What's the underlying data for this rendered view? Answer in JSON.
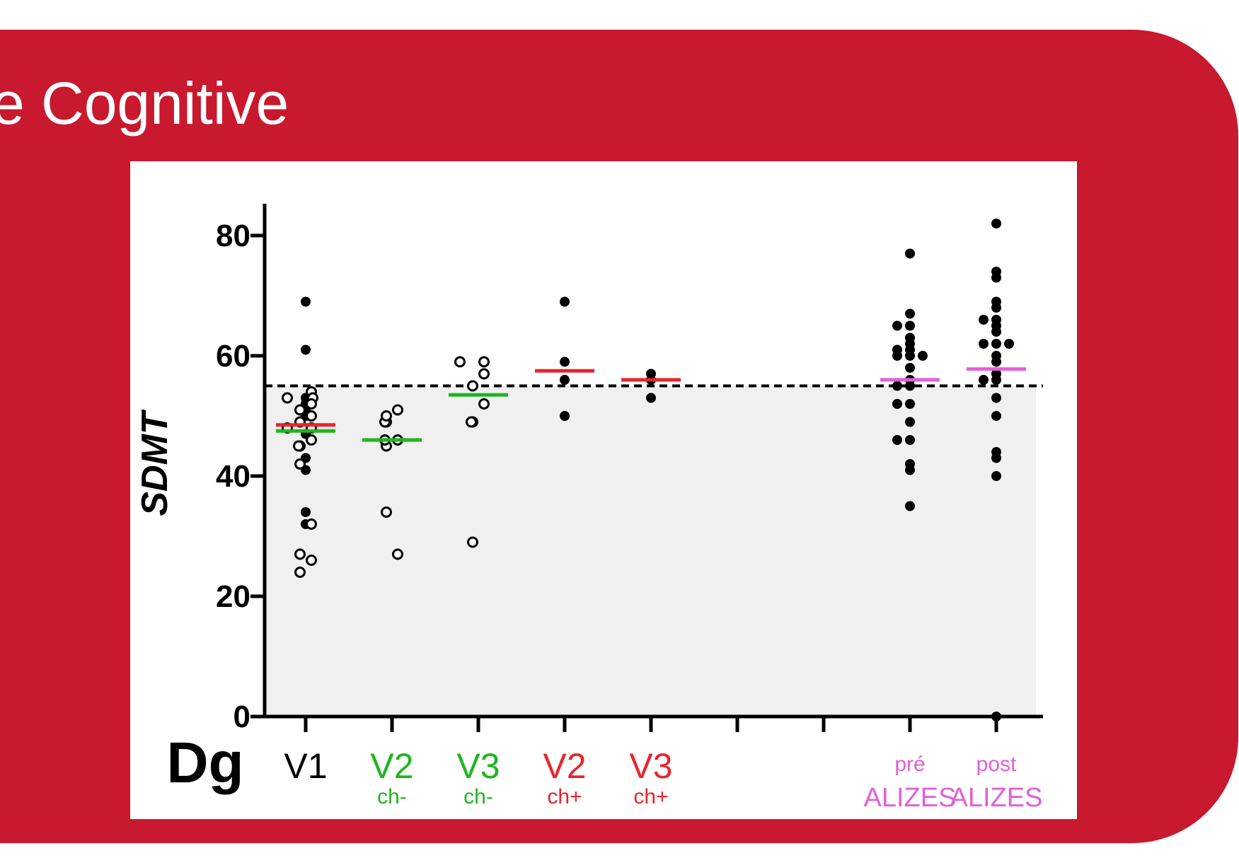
{
  "slide": {
    "title": "e Cognitive",
    "background_color": "#ffffff",
    "panel_color": "#c8192e"
  },
  "chart_data": {
    "type": "scatter",
    "ylabel": "SDMT",
    "ylim": [
      0,
      85
    ],
    "yticks": [
      0,
      20,
      40,
      60,
      80
    ],
    "reference_line": 55,
    "below_reference_shading": "#f0f0f0",
    "row_label": "Dg",
    "categories": [
      {
        "label": "V1",
        "sublabel": "",
        "color": "#000000"
      },
      {
        "label": "V2",
        "sublabel": "ch-",
        "color": "#1fb51f"
      },
      {
        "label": "V3",
        "sublabel": "ch-",
        "color": "#1fb51f"
      },
      {
        "label": "V2",
        "sublabel": "ch+",
        "color": "#e8242c"
      },
      {
        "label": "V3",
        "sublabel": "ch+",
        "color": "#e8242c"
      },
      {
        "label": "",
        "sublabel": "",
        "color": "#000000"
      },
      {
        "label": "",
        "sublabel": "",
        "color": "#000000"
      },
      {
        "label": "pré",
        "sublabel": "ALIZES",
        "color": "#e060d8"
      },
      {
        "label": "post",
        "sublabel": "ALIZES",
        "color": "#e060d8"
      }
    ],
    "series": [
      {
        "category": 0,
        "filled": [
          69,
          61,
          53,
          52,
          51,
          50,
          47,
          43,
          41,
          34,
          32
        ],
        "open": [
          53,
          53,
          54,
          53,
          52,
          51,
          50,
          49,
          48,
          48,
          46,
          45,
          45,
          42,
          32,
          27,
          26,
          24
        ],
        "means": [
          {
            "value": 48.5,
            "color": "#e8242c"
          },
          {
            "value": 47.5,
            "color": "#1fb51f"
          }
        ]
      },
      {
        "category": 1,
        "filled": [],
        "open": [
          51,
          49,
          49,
          50,
          46,
          45,
          46,
          34,
          27
        ],
        "means": [
          {
            "value": 46,
            "color": "#1fb51f"
          }
        ]
      },
      {
        "category": 2,
        "filled": [],
        "open": [
          59,
          59,
          57,
          55,
          52,
          49,
          49,
          29
        ],
        "means": [
          {
            "value": 53.5,
            "color": "#1fb51f"
          }
        ]
      },
      {
        "category": 3,
        "filled": [
          69,
          59,
          56,
          50
        ],
        "open": [],
        "means": [
          {
            "value": 57.5,
            "color": "#e8242c"
          }
        ]
      },
      {
        "category": 4,
        "filled": [
          57,
          56,
          53
        ],
        "open": [],
        "means": [
          {
            "value": 56,
            "color": "#e8242c"
          }
        ]
      },
      {
        "category": 7,
        "filled": [
          77,
          67,
          65,
          65,
          63,
          62,
          61,
          61,
          60,
          60,
          60,
          58,
          56,
          55,
          55,
          52,
          52,
          49,
          46,
          46,
          42,
          41,
          35
        ],
        "open": [],
        "means": [
          {
            "value": 56,
            "color": "#e060d8"
          }
        ]
      },
      {
        "category": 8,
        "filled": [
          82,
          74,
          73,
          69,
          68,
          66,
          66,
          65,
          64,
          62,
          62,
          62,
          60,
          59,
          57,
          56,
          56,
          53,
          50,
          44,
          43,
          40,
          0
        ],
        "open": [],
        "means": [
          {
            "value": 57.8,
            "color": "#e060d8"
          }
        ]
      }
    ]
  }
}
